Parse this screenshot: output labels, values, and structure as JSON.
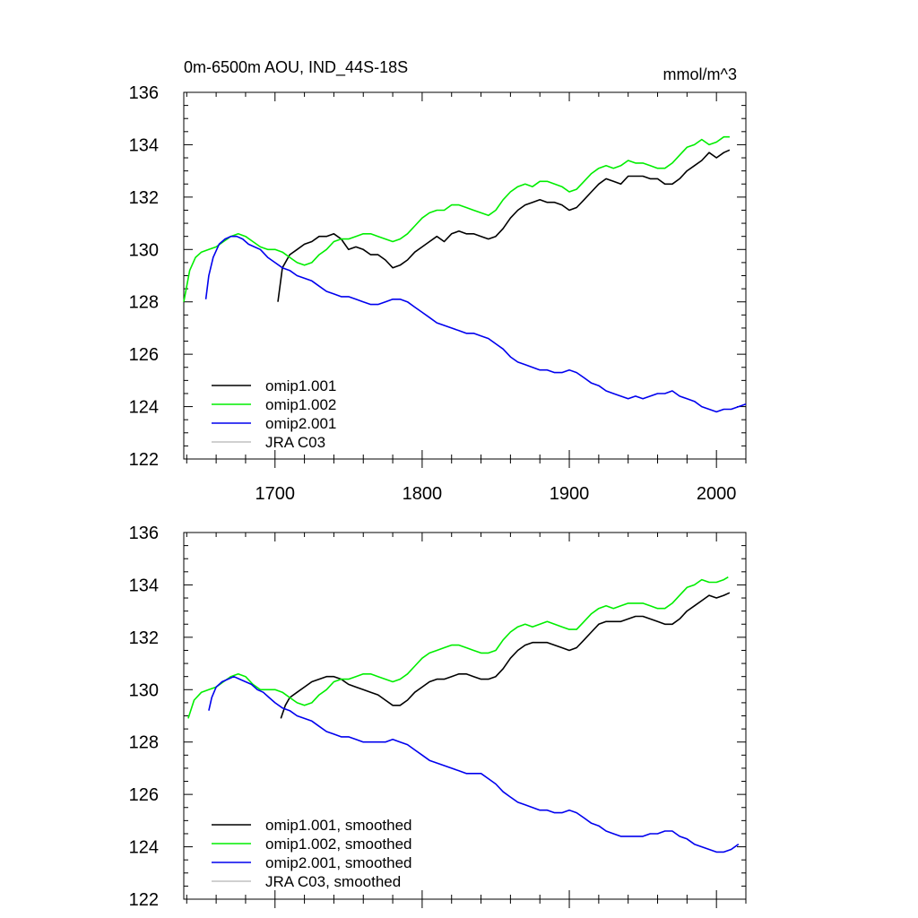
{
  "chart_data": [
    {
      "type": "line",
      "title": "0m-6500m AOU, IND_44S-18S",
      "units": "mmol/m^3",
      "xlim": [
        1638,
        2020
      ],
      "ylim": [
        122,
        136
      ],
      "x_ticks": [
        1700,
        1800,
        1900,
        2000
      ],
      "y_ticks": [
        122,
        124,
        126,
        128,
        130,
        132,
        134,
        136
      ],
      "legend_placement": "bottom-left",
      "series": [
        {
          "name": "omip1.001",
          "color": "#000000",
          "x": [
            1702,
            1705,
            1710,
            1715,
            1720,
            1725,
            1730,
            1735,
            1740,
            1745,
            1750,
            1755,
            1760,
            1765,
            1770,
            1775,
            1780,
            1785,
            1790,
            1795,
            1800,
            1805,
            1810,
            1815,
            1820,
            1825,
            1830,
            1835,
            1840,
            1845,
            1850,
            1855,
            1860,
            1865,
            1870,
            1875,
            1880,
            1885,
            1890,
            1895,
            1900,
            1905,
            1910,
            1915,
            1920,
            1925,
            1930,
            1935,
            1940,
            1945,
            1950,
            1955,
            1960,
            1965,
            1970,
            1975,
            1980,
            1985,
            1990,
            1995,
            2000,
            2005,
            2009
          ],
          "y": [
            128.0,
            129.3,
            129.8,
            130.0,
            130.2,
            130.3,
            130.5,
            130.5,
            130.6,
            130.4,
            130.0,
            130.1,
            130.0,
            129.8,
            129.8,
            129.6,
            129.3,
            129.4,
            129.6,
            129.9,
            130.1,
            130.3,
            130.5,
            130.3,
            130.6,
            130.7,
            130.6,
            130.6,
            130.5,
            130.4,
            130.5,
            130.8,
            131.2,
            131.5,
            131.7,
            131.8,
            131.9,
            131.8,
            131.8,
            131.7,
            131.5,
            131.6,
            131.9,
            132.2,
            132.5,
            132.7,
            132.6,
            132.5,
            132.8,
            132.8,
            132.8,
            132.7,
            132.7,
            132.5,
            132.5,
            132.7,
            133.0,
            133.2,
            133.4,
            133.7,
            133.5,
            133.7,
            133.8
          ]
        },
        {
          "name": "omip1.002",
          "color": "#00ee00",
          "x": [
            1638,
            1642,
            1646,
            1650,
            1655,
            1660,
            1665,
            1670,
            1675,
            1680,
            1685,
            1690,
            1695,
            1700,
            1705,
            1710,
            1715,
            1720,
            1725,
            1730,
            1735,
            1740,
            1745,
            1750,
            1755,
            1760,
            1765,
            1770,
            1775,
            1780,
            1785,
            1790,
            1795,
            1800,
            1805,
            1810,
            1815,
            1820,
            1825,
            1830,
            1835,
            1840,
            1845,
            1850,
            1855,
            1860,
            1865,
            1870,
            1875,
            1880,
            1885,
            1890,
            1895,
            1900,
            1905,
            1910,
            1915,
            1920,
            1925,
            1930,
            1935,
            1940,
            1945,
            1950,
            1955,
            1960,
            1965,
            1970,
            1975,
            1980,
            1985,
            1990,
            1995,
            2000,
            2005,
            2009
          ],
          "y": [
            128.0,
            129.2,
            129.7,
            129.9,
            130.0,
            130.1,
            130.3,
            130.5,
            130.6,
            130.5,
            130.3,
            130.1,
            130.0,
            130.0,
            129.9,
            129.7,
            129.5,
            129.4,
            129.5,
            129.8,
            130.0,
            130.3,
            130.4,
            130.4,
            130.5,
            130.6,
            130.6,
            130.5,
            130.4,
            130.3,
            130.4,
            130.6,
            130.9,
            131.2,
            131.4,
            131.5,
            131.5,
            131.7,
            131.7,
            131.6,
            131.5,
            131.4,
            131.3,
            131.5,
            131.9,
            132.2,
            132.4,
            132.5,
            132.4,
            132.6,
            132.6,
            132.5,
            132.4,
            132.2,
            132.3,
            132.6,
            132.9,
            133.1,
            133.2,
            133.1,
            133.2,
            133.4,
            133.3,
            133.3,
            133.2,
            133.1,
            133.1,
            133.3,
            133.6,
            133.9,
            134.0,
            134.2,
            134.0,
            134.1,
            134.3,
            134.3
          ]
        },
        {
          "name": "omip2.001",
          "color": "#0000ee",
          "x": [
            1653,
            1655,
            1658,
            1662,
            1666,
            1670,
            1674,
            1678,
            1682,
            1686,
            1690,
            1695,
            1700,
            1705,
            1710,
            1715,
            1720,
            1725,
            1730,
            1735,
            1740,
            1745,
            1750,
            1755,
            1760,
            1765,
            1770,
            1775,
            1780,
            1785,
            1790,
            1795,
            1800,
            1805,
            1810,
            1815,
            1820,
            1825,
            1830,
            1835,
            1840,
            1845,
            1850,
            1855,
            1860,
            1865,
            1870,
            1875,
            1880,
            1885,
            1890,
            1895,
            1900,
            1905,
            1910,
            1915,
            1920,
            1925,
            1930,
            1935,
            1940,
            1945,
            1950,
            1955,
            1960,
            1965,
            1970,
            1975,
            1980,
            1985,
            1990,
            1995,
            2000,
            2005,
            2010,
            2015,
            2020
          ],
          "y": [
            128.1,
            129.0,
            129.7,
            130.2,
            130.4,
            130.5,
            130.5,
            130.4,
            130.2,
            130.1,
            130.0,
            129.7,
            129.5,
            129.3,
            129.2,
            129.0,
            128.9,
            128.8,
            128.6,
            128.4,
            128.3,
            128.2,
            128.2,
            128.1,
            128.0,
            127.9,
            127.9,
            128.0,
            128.1,
            128.1,
            128.0,
            127.8,
            127.6,
            127.4,
            127.2,
            127.1,
            127.0,
            126.9,
            126.8,
            126.8,
            126.7,
            126.6,
            126.4,
            126.2,
            125.9,
            125.7,
            125.6,
            125.5,
            125.4,
            125.4,
            125.3,
            125.3,
            125.4,
            125.3,
            125.1,
            124.9,
            124.8,
            124.6,
            124.5,
            124.4,
            124.3,
            124.4,
            124.3,
            124.4,
            124.5,
            124.5,
            124.6,
            124.4,
            124.3,
            124.2,
            124.0,
            123.9,
            123.8,
            123.9,
            123.9,
            124.0,
            124.1
          ]
        },
        {
          "name": "JRA C03",
          "color": "#c0c0c0",
          "x": [],
          "y": []
        }
      ]
    },
    {
      "type": "line",
      "title": "",
      "xlim": [
        1638,
        2020
      ],
      "ylim": [
        122,
        136
      ],
      "x_ticks": [
        1700,
        1800,
        1900,
        2000
      ],
      "y_ticks": [
        122,
        124,
        126,
        128,
        130,
        132,
        134,
        136
      ],
      "legend_placement": "bottom-left",
      "series": [
        {
          "name": "omip1.001, smoothed",
          "color": "#000000",
          "x": [
            1704,
            1707,
            1710,
            1715,
            1720,
            1725,
            1730,
            1735,
            1740,
            1745,
            1750,
            1755,
            1760,
            1765,
            1770,
            1775,
            1780,
            1785,
            1790,
            1795,
            1800,
            1805,
            1810,
            1815,
            1820,
            1825,
            1830,
            1835,
            1840,
            1845,
            1850,
            1855,
            1860,
            1865,
            1870,
            1875,
            1880,
            1885,
            1890,
            1895,
            1900,
            1905,
            1910,
            1915,
            1920,
            1925,
            1930,
            1935,
            1940,
            1945,
            1950,
            1955,
            1960,
            1965,
            1970,
            1975,
            1980,
            1985,
            1990,
            1995,
            2000,
            2005,
            2009
          ],
          "y": [
            128.9,
            129.4,
            129.7,
            129.9,
            130.1,
            130.3,
            130.4,
            130.5,
            130.5,
            130.4,
            130.2,
            130.1,
            130.0,
            129.9,
            129.8,
            129.6,
            129.4,
            129.4,
            129.6,
            129.9,
            130.1,
            130.3,
            130.4,
            130.4,
            130.5,
            130.6,
            130.6,
            130.5,
            130.4,
            130.4,
            130.5,
            130.8,
            131.2,
            131.5,
            131.7,
            131.8,
            131.8,
            131.8,
            131.7,
            131.6,
            131.5,
            131.6,
            131.9,
            132.2,
            132.5,
            132.6,
            132.6,
            132.6,
            132.7,
            132.8,
            132.8,
            132.7,
            132.6,
            132.5,
            132.5,
            132.7,
            133.0,
            133.2,
            133.4,
            133.6,
            133.5,
            133.6,
            133.7
          ]
        },
        {
          "name": "omip1.002, smoothed",
          "color": "#00ee00",
          "x": [
            1641,
            1645,
            1650,
            1655,
            1660,
            1665,
            1670,
            1675,
            1680,
            1685,
            1690,
            1695,
            1700,
            1705,
            1710,
            1715,
            1720,
            1725,
            1730,
            1735,
            1740,
            1745,
            1750,
            1755,
            1760,
            1765,
            1770,
            1775,
            1780,
            1785,
            1790,
            1795,
            1800,
            1805,
            1810,
            1815,
            1820,
            1825,
            1830,
            1835,
            1840,
            1845,
            1850,
            1855,
            1860,
            1865,
            1870,
            1875,
            1880,
            1885,
            1890,
            1895,
            1900,
            1905,
            1910,
            1915,
            1920,
            1925,
            1930,
            1935,
            1940,
            1945,
            1950,
            1955,
            1960,
            1965,
            1970,
            1975,
            1980,
            1985,
            1990,
            1995,
            2000,
            2005,
            2008
          ],
          "y": [
            128.9,
            129.6,
            129.9,
            130.0,
            130.1,
            130.3,
            130.5,
            130.6,
            130.5,
            130.2,
            130.0,
            130.0,
            130.0,
            129.9,
            129.7,
            129.5,
            129.4,
            129.5,
            129.8,
            130.0,
            130.3,
            130.4,
            130.4,
            130.5,
            130.6,
            130.6,
            130.5,
            130.4,
            130.3,
            130.4,
            130.6,
            130.9,
            131.2,
            131.4,
            131.5,
            131.6,
            131.7,
            131.7,
            131.6,
            131.5,
            131.4,
            131.4,
            131.5,
            131.9,
            132.2,
            132.4,
            132.5,
            132.4,
            132.5,
            132.6,
            132.5,
            132.4,
            132.3,
            132.3,
            132.6,
            132.9,
            133.1,
            133.2,
            133.1,
            133.2,
            133.3,
            133.3,
            133.3,
            133.2,
            133.1,
            133.1,
            133.3,
            133.6,
            133.9,
            134.0,
            134.2,
            134.1,
            134.1,
            134.2,
            134.3
          ]
        },
        {
          "name": "omip2.001, smoothed",
          "color": "#0000ee",
          "x": [
            1655,
            1657,
            1660,
            1664,
            1668,
            1672,
            1676,
            1680,
            1684,
            1688,
            1692,
            1696,
            1700,
            1705,
            1710,
            1715,
            1720,
            1725,
            1730,
            1735,
            1740,
            1745,
            1750,
            1755,
            1760,
            1765,
            1770,
            1775,
            1780,
            1785,
            1790,
            1795,
            1800,
            1805,
            1810,
            1815,
            1820,
            1825,
            1830,
            1835,
            1840,
            1845,
            1850,
            1855,
            1860,
            1865,
            1870,
            1875,
            1880,
            1885,
            1890,
            1895,
            1900,
            1905,
            1910,
            1915,
            1920,
            1925,
            1930,
            1935,
            1940,
            1945,
            1950,
            1955,
            1960,
            1965,
            1970,
            1975,
            1980,
            1985,
            1990,
            1995,
            2000,
            2005,
            2010,
            2015
          ],
          "y": [
            129.2,
            129.7,
            130.1,
            130.3,
            130.4,
            130.5,
            130.4,
            130.3,
            130.2,
            130.0,
            129.9,
            129.7,
            129.5,
            129.3,
            129.2,
            129.0,
            128.9,
            128.8,
            128.6,
            128.4,
            128.3,
            128.2,
            128.2,
            128.1,
            128.0,
            128.0,
            128.0,
            128.0,
            128.1,
            128.0,
            127.9,
            127.7,
            127.5,
            127.3,
            127.2,
            127.1,
            127.0,
            126.9,
            126.8,
            126.8,
            126.8,
            126.6,
            126.4,
            126.1,
            125.9,
            125.7,
            125.6,
            125.5,
            125.4,
            125.4,
            125.3,
            125.3,
            125.4,
            125.3,
            125.1,
            124.9,
            124.8,
            124.6,
            124.5,
            124.4,
            124.4,
            124.4,
            124.4,
            124.5,
            124.5,
            124.6,
            124.6,
            124.4,
            124.3,
            124.1,
            124.0,
            123.9,
            123.8,
            123.8,
            123.9,
            124.1
          ]
        },
        {
          "name": "JRA C03, smoothed",
          "color": "#c0c0c0",
          "x": [],
          "y": []
        }
      ]
    }
  ]
}
